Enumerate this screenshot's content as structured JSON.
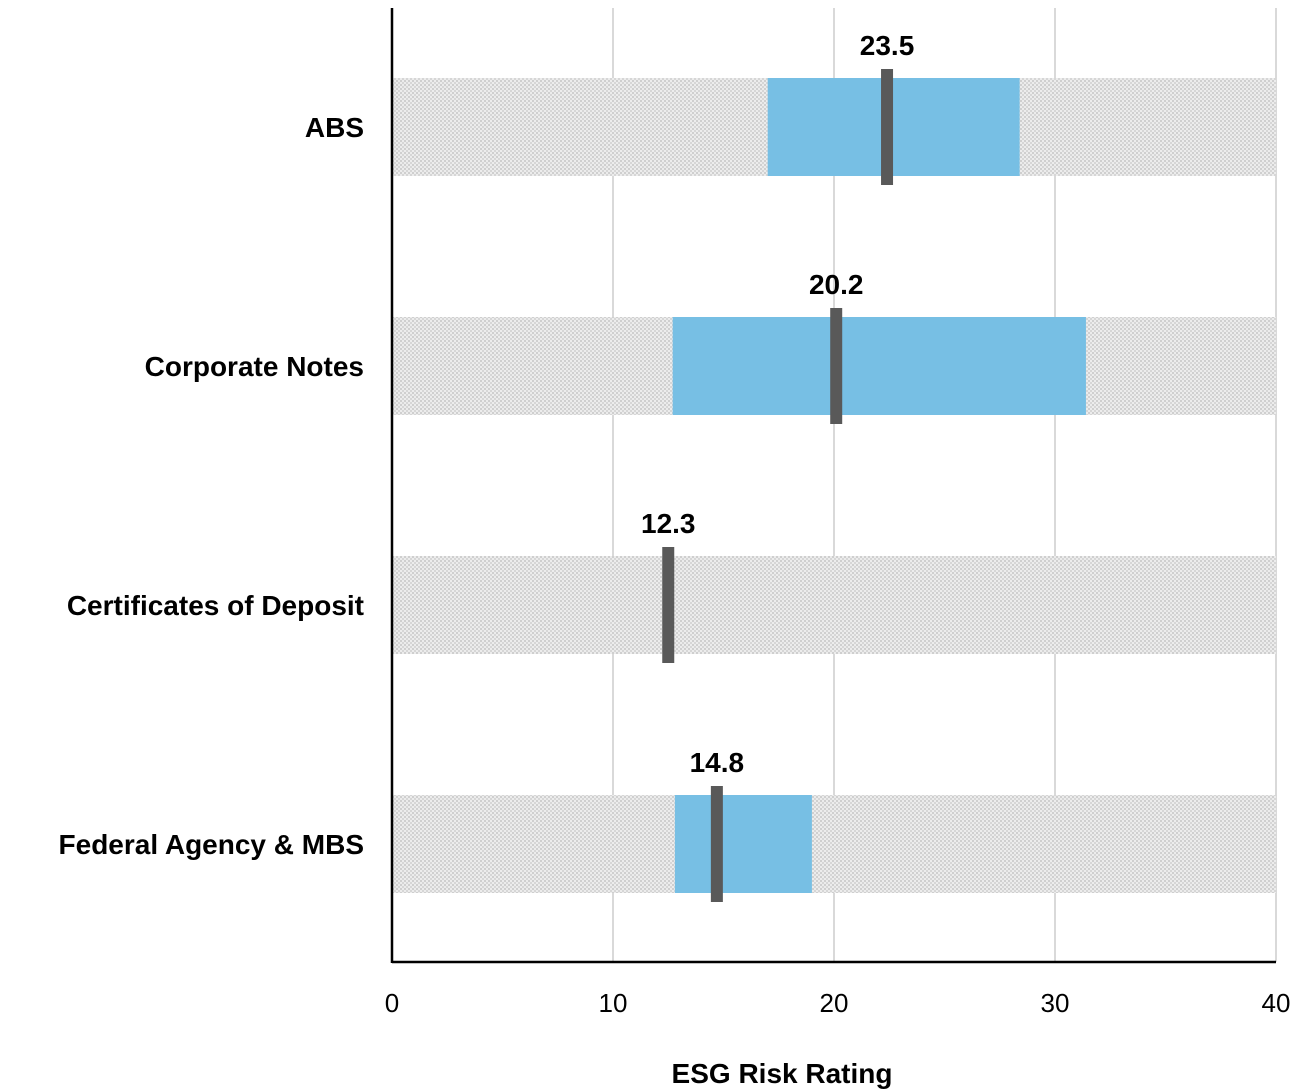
{
  "chart_data": {
    "type": "bar",
    "orientation": "horizontal",
    "title": "",
    "xlabel": "ESG Risk Rating",
    "ylabel": "",
    "xlim": [
      0,
      40
    ],
    "xticks": [
      0,
      10,
      20,
      30,
      40
    ],
    "grid": true,
    "legend": "none",
    "categories": [
      "ABS",
      "Corporate Notes",
      "Certificates of Deposit",
      "Federal Agency & MBS"
    ],
    "background_range": [
      0,
      40
    ],
    "ranges": [
      {
        "low": 17.0,
        "high": 28.4
      },
      {
        "low": 12.7,
        "high": 31.4
      },
      null,
      {
        "low": 12.8,
        "high": 19.0
      }
    ],
    "values": [
      23.5,
      20.2,
      12.3,
      14.8
    ],
    "value_labels": [
      "23.5",
      "20.2",
      "12.3",
      "14.8"
    ],
    "marker_positions": [
      22.4,
      20.1,
      12.5,
      14.7
    ],
    "colors": {
      "background_band": "#d9d9d9",
      "range_bar": "#77bfe4",
      "marker": "#595959",
      "gridline": "#d9d9d9",
      "axis": "#000000"
    }
  }
}
